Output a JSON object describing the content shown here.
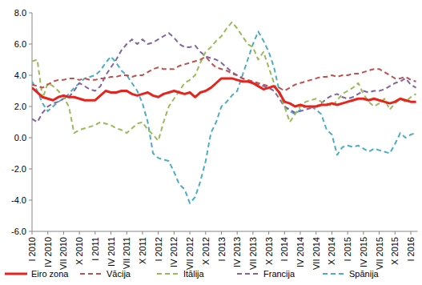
{
  "chart_data": {
    "type": "line",
    "categories": [
      "I 2010",
      null,
      null,
      "IV 2010",
      null,
      null,
      "VII 2010",
      null,
      null,
      "X 2010",
      null,
      null,
      "I 2011",
      null,
      null,
      "IV 2011",
      null,
      null,
      "VII 2011",
      null,
      null,
      "X 2011",
      null,
      null,
      "I 2012",
      null,
      null,
      "IV 2012",
      null,
      null,
      "VII 2012",
      null,
      null,
      "X 2012",
      null,
      null,
      "I 2013",
      null,
      null,
      "IV 2013",
      null,
      null,
      "VII 2013",
      null,
      null,
      "X 2013",
      null,
      null,
      "I 2014",
      null,
      null,
      "IV 2014",
      null,
      null,
      "VII 2014",
      null,
      null,
      "X 2014",
      null,
      null,
      "I 2015",
      null,
      null,
      "IV 2015",
      null,
      null,
      "VII 2015",
      null,
      null,
      "X 2015",
      null,
      null,
      "I 2016",
      null
    ],
    "ylim": [
      -6,
      8
    ],
    "yticks": [
      {
        "value": -6,
        "label": "-6.0"
      },
      {
        "value": -4,
        "label": "-4.0"
      },
      {
        "value": -2,
        "label": "-2.0"
      },
      {
        "value": 0,
        "label": "0.0"
      },
      {
        "value": 2,
        "label": "2.0"
      },
      {
        "value": 4,
        "label": "4.0"
      },
      {
        "value": 6,
        "label": "6.0"
      },
      {
        "value": 8,
        "label": "8.0"
      }
    ],
    "grid": false,
    "legend": "bottom",
    "series": [
      {
        "name": "Eiro zona",
        "color": "#e8231b",
        "line_style": "solid",
        "values": [
          3.2,
          2.9,
          2.6,
          2.5,
          2.4,
          2.6,
          2.7,
          2.6,
          2.6,
          2.5,
          2.4,
          2.4,
          2.4,
          2.7,
          3.0,
          2.9,
          2.9,
          3.0,
          3.0,
          2.8,
          2.7,
          2.8,
          2.9,
          2.7,
          2.6,
          2.8,
          2.9,
          3.0,
          2.9,
          2.8,
          2.9,
          2.6,
          2.9,
          3.0,
          3.2,
          3.5,
          3.8,
          3.8,
          3.8,
          3.7,
          3.6,
          3.6,
          3.5,
          3.3,
          3.1,
          3.2,
          3.3,
          2.9,
          2.3,
          2.2,
          2.0,
          2.1,
          2.0,
          2.0,
          2.0,
          2.1,
          2.1,
          2.2,
          2.1,
          2.2,
          2.3,
          2.4,
          2.5,
          2.5,
          2.4,
          2.5,
          2.4,
          2.3,
          2.2,
          2.3,
          2.5,
          2.4,
          2.3,
          2.3
        ]
      },
      {
        "name": "Vācija",
        "color": "#c0504d",
        "line_style": "dashed",
        "values": [
          3.4,
          3.3,
          3.2,
          3.4,
          3.6,
          3.7,
          3.7,
          3.8,
          3.8,
          3.7,
          3.8,
          3.7,
          3.7,
          3.8,
          3.8,
          3.9,
          3.9,
          4.0,
          4.0,
          3.9,
          4.0,
          4.0,
          4.2,
          4.4,
          4.5,
          4.4,
          4.4,
          4.4,
          4.6,
          4.7,
          4.8,
          4.9,
          5.0,
          5.2,
          4.8,
          4.5,
          4.4,
          4.3,
          4.1,
          4.0,
          3.8,
          3.7,
          3.6,
          3.5,
          3.4,
          3.3,
          3.3,
          3.2,
          3.0,
          3.2,
          3.4,
          3.5,
          3.6,
          3.7,
          3.8,
          3.9,
          3.9,
          4.0,
          3.9,
          4.0,
          4.0,
          4.1,
          4.1,
          4.2,
          4.3,
          4.4,
          4.4,
          4.2,
          4.0,
          3.8,
          3.8,
          3.9,
          3.7,
          3.6
        ]
      },
      {
        "name": "Itālija",
        "color": "#9bbb59",
        "line_style": "dashed",
        "values": [
          4.9,
          5.0,
          2.5,
          3.5,
          3.3,
          3.0,
          2.6,
          2.0,
          0.3,
          0.5,
          0.6,
          0.7,
          0.8,
          1.0,
          0.9,
          0.8,
          0.6,
          0.5,
          0.3,
          0.6,
          0.9,
          1.0,
          0.5,
          0.2,
          -0.2,
          1.0,
          2.0,
          2.5,
          3.0,
          3.5,
          3.7,
          4.0,
          4.8,
          5.5,
          5.8,
          6.2,
          6.5,
          7.0,
          7.4,
          7.0,
          6.5,
          6.0,
          5.8,
          5.0,
          5.5,
          4.5,
          3.5,
          2.8,
          2.0,
          1.0,
          1.5,
          2.0,
          2.3,
          2.4,
          2.5,
          2.3,
          2.2,
          2.0,
          2.4,
          2.8,
          3.0,
          3.2,
          3.5,
          2.8,
          2.3,
          2.0,
          2.2,
          2.5,
          1.8,
          2.2,
          2.5,
          2.3,
          2.6,
          2.8
        ]
      },
      {
        "name": "Francija",
        "color": "#8064a2",
        "line_style": "dashed",
        "values": [
          1.2,
          1.0,
          1.6,
          2.0,
          2.2,
          2.3,
          2.5,
          2.6,
          3.0,
          3.5,
          3.3,
          3.1,
          3.0,
          3.3,
          4.0,
          4.5,
          5.0,
          5.6,
          6.0,
          6.3,
          6.0,
          6.3,
          6.0,
          6.1,
          6.3,
          6.5,
          6.7,
          6.4,
          6.0,
          5.8,
          5.8,
          5.9,
          5.5,
          5.2,
          5.1,
          5.0,
          4.8,
          4.5,
          4.2,
          4.0,
          3.8,
          3.6,
          3.5,
          3.4,
          3.3,
          3.2,
          3.0,
          2.5,
          2.0,
          1.8,
          1.6,
          1.7,
          1.8,
          1.9,
          2.0,
          2.2,
          2.5,
          2.7,
          2.8,
          2.6,
          2.5,
          2.6,
          2.8,
          3.0,
          2.9,
          3.0,
          3.0,
          3.1,
          3.3,
          3.5,
          3.6,
          3.8,
          3.4,
          3.2
        ]
      },
      {
        "name": "Spānija",
        "color": "#4bacc6",
        "line_style": "dashed",
        "values": [
          3.6,
          3.0,
          2.2,
          1.7,
          2.0,
          2.3,
          2.5,
          2.8,
          3.2,
          3.5,
          3.8,
          3.9,
          4.0,
          4.3,
          4.8,
          5.2,
          4.8,
          4.3,
          4.0,
          3.5,
          3.0,
          2.2,
          1.0,
          -1.0,
          -1.3,
          -1.4,
          -1.5,
          -2.2,
          -3.0,
          -3.3,
          -4.2,
          -3.8,
          -2.8,
          -1.5,
          0.3,
          1.0,
          2.0,
          2.3,
          2.7,
          3.0,
          4.0,
          5.0,
          6.0,
          6.8,
          6.2,
          5.5,
          4.5,
          3.0,
          2.0,
          1.7,
          1.5,
          1.8,
          2.0,
          2.0,
          1.8,
          1.5,
          0.5,
          0.2,
          -1.1,
          -0.6,
          -0.5,
          -0.6,
          -0.5,
          -0.7,
          -0.9,
          -0.7,
          -0.8,
          -0.9,
          -1.0,
          -0.4,
          0.3,
          0.0,
          0.2,
          0.3
        ]
      }
    ]
  }
}
